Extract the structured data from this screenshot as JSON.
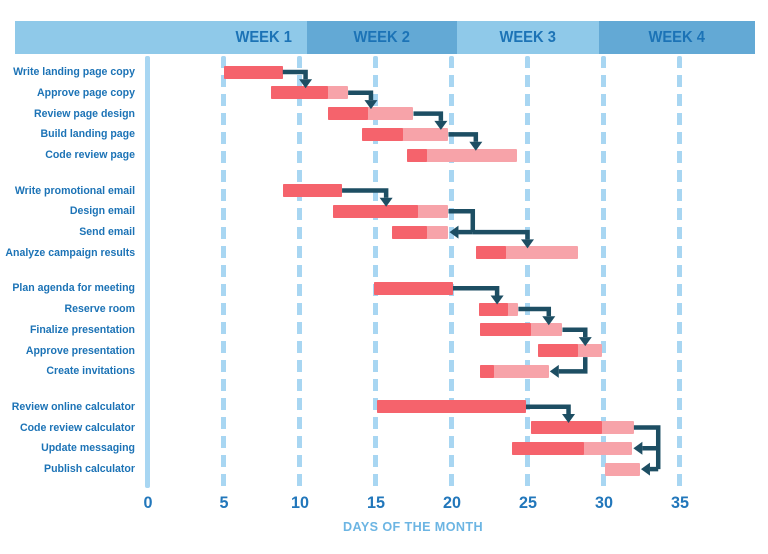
{
  "header": {
    "weeks": [
      {
        "label": "WEEK 1",
        "shade": "light"
      },
      {
        "label": "WEEK 2",
        "shade": "dark"
      },
      {
        "label": "WEEK 3",
        "shade": "light"
      },
      {
        "label": "WEEK 4",
        "shade": "dark"
      }
    ]
  },
  "axis": {
    "xlabel": "DAYS OF THE MONTH"
  },
  "colors": {
    "bar_solid": "#f5636c",
    "bar_light": "#f7a3a9",
    "connector": "#1d4e63",
    "gridline": "#a8d6f2",
    "header_light": "#8fc9e9",
    "header_dark": "#63a9d5",
    "text_blue": "#1c73b6",
    "axis_number_blue": "#2277bb",
    "xlabel_blue": "#6cb5e3"
  },
  "chart_data": {
    "type": "gantt",
    "xlabel": "DAYS OF THE MONTH",
    "x_ticks": [
      0,
      5,
      10,
      15,
      20,
      25,
      30,
      35
    ],
    "xlim": [
      0,
      35
    ],
    "grid": "dashed-vertical",
    "week_bands": [
      {
        "label": "WEEK 1",
        "end_day": 10.5,
        "shade": "light"
      },
      {
        "label": "WEEK 2",
        "end_day": 20.4,
        "shade": "dark"
      },
      {
        "label": "WEEK 3",
        "end_day": 29.7,
        "shade": "light"
      },
      {
        "label": "WEEK 4",
        "end_day": 40.0,
        "shade": "dark"
      }
    ],
    "tasks": [
      {
        "label": "Write landing page copy",
        "group": 0,
        "start": 5.0,
        "solid_end": 8.9,
        "end": 8.9
      },
      {
        "label": "Approve page copy",
        "group": 0,
        "start": 8.1,
        "solid_end": 11.9,
        "end": 13.2
      },
      {
        "label": "Review page design",
        "group": 0,
        "start": 11.9,
        "solid_end": 14.5,
        "end": 17.5
      },
      {
        "label": "Build landing page",
        "group": 0,
        "start": 14.1,
        "solid_end": 16.8,
        "end": 19.8
      },
      {
        "label": "Code review page",
        "group": 0,
        "start": 17.1,
        "solid_end": 18.4,
        "end": 24.3
      },
      {
        "label": "Write promotional email",
        "group": 1,
        "start": 8.9,
        "solid_end": 12.8,
        "end": 12.8
      },
      {
        "label": "Design email",
        "group": 1,
        "start": 12.2,
        "solid_end": 17.8,
        "end": 19.8
      },
      {
        "label": "Send email",
        "group": 1,
        "start": 16.1,
        "solid_end": 18.4,
        "end": 19.8
      },
      {
        "label": "Analyze campaign results",
        "group": 1,
        "start": 21.6,
        "solid_end": 23.6,
        "end": 28.3
      },
      {
        "label": "Plan agenda for meeting",
        "group": 2,
        "start": 14.9,
        "solid_end": 20.1,
        "end": 20.1
      },
      {
        "label": "Reserve room",
        "group": 2,
        "start": 21.8,
        "solid_end": 23.7,
        "end": 24.4
      },
      {
        "label": "Finalize presentation",
        "group": 2,
        "start": 21.9,
        "solid_end": 25.2,
        "end": 27.3
      },
      {
        "label": "Approve presentation",
        "group": 2,
        "start": 25.7,
        "solid_end": 28.3,
        "end": 29.9
      },
      {
        "label": "Create invitations",
        "group": 2,
        "start": 21.9,
        "solid_end": 22.8,
        "end": 26.4
      },
      {
        "label": "Review online calculator",
        "group": 3,
        "start": 15.1,
        "solid_end": 24.9,
        "end": 24.9
      },
      {
        "label": "Code review calculator",
        "group": 3,
        "start": 25.2,
        "solid_end": 29.9,
        "end": 32.0
      },
      {
        "label": "Update messaging",
        "group": 3,
        "start": 24.0,
        "solid_end": 28.7,
        "end": 31.9
      },
      {
        "label": "Publish calculator",
        "group": 3,
        "start": 30.1,
        "solid_end": 30.1,
        "end": 32.4
      }
    ],
    "connectors": [
      {
        "from": 0,
        "to": 1,
        "type": "down",
        "elbow_day": 10.4
      },
      {
        "from": 1,
        "to": 2,
        "type": "down",
        "elbow_day": 14.7
      },
      {
        "from": 2,
        "to": 3,
        "type": "down",
        "elbow_day": 19.3
      },
      {
        "from": 3,
        "to": 4,
        "type": "down",
        "elbow_day": 21.6
      },
      {
        "from": 5,
        "to": 6,
        "type": "down",
        "elbow_day": 15.7
      },
      {
        "from": 6,
        "to": 7,
        "type": "fork",
        "elbow_day": 21.4,
        "left_to": 7,
        "down_day": 25.0,
        "down_to": 8
      },
      {
        "from": 9,
        "to": 10,
        "type": "down",
        "elbow_day": 23.0
      },
      {
        "from": 10,
        "to": 11,
        "type": "down",
        "elbow_day": 26.4
      },
      {
        "from": 11,
        "to": 12,
        "type": "down",
        "elbow_day": 28.8
      },
      {
        "from": 12,
        "to": 13,
        "type": "down-left",
        "x_day": 28.8
      },
      {
        "from": 14,
        "to": 15,
        "type": "down",
        "elbow_day": 27.7
      },
      {
        "from": 15,
        "to": 16,
        "type": "double-left",
        "x_day": 33.6,
        "targets": [
          16,
          17
        ]
      }
    ]
  }
}
